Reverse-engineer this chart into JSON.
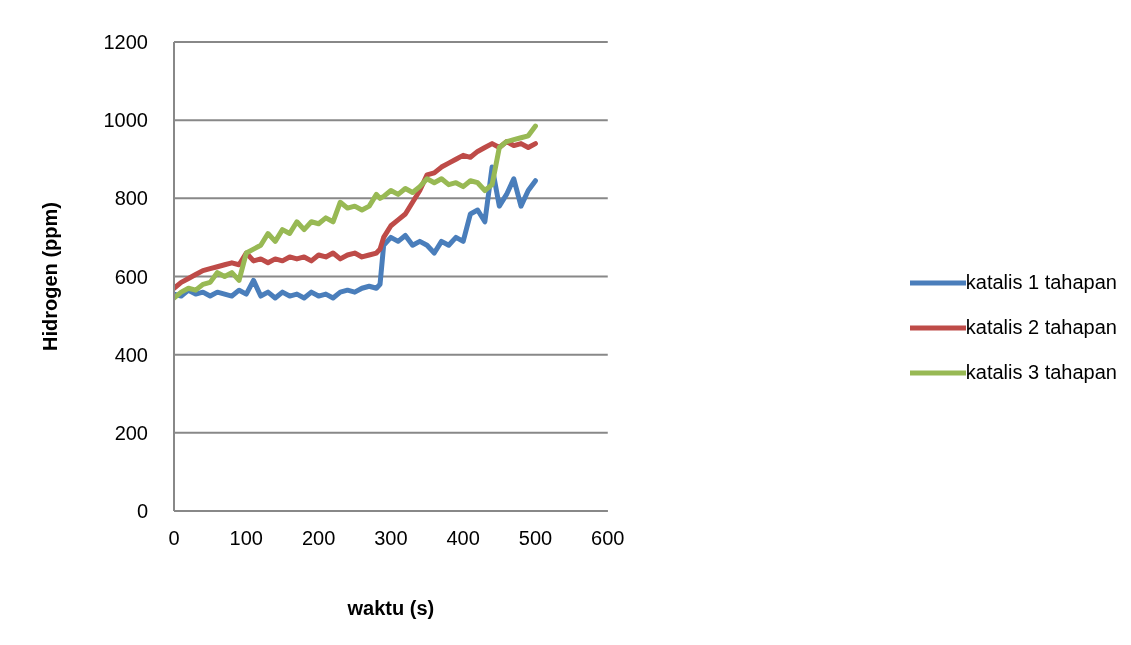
{
  "chart_data": {
    "type": "line",
    "xlabel": "waktu (s)",
    "ylabel": "Hidrogen (ppm)",
    "x": [
      0,
      10,
      20,
      30,
      40,
      50,
      60,
      70,
      80,
      90,
      100,
      110,
      120,
      130,
      140,
      150,
      160,
      170,
      180,
      190,
      200,
      210,
      220,
      230,
      240,
      250,
      260,
      270,
      280,
      285,
      290,
      300,
      310,
      320,
      330,
      340,
      350,
      360,
      370,
      380,
      390,
      400,
      410,
      420,
      430,
      440,
      450,
      460,
      470,
      480,
      490,
      500
    ],
    "series": [
      {
        "name": "katalis 1 tahapan",
        "color": "#4a7ebb",
        "values": [
          555,
          550,
          565,
          555,
          560,
          550,
          560,
          555,
          550,
          565,
          555,
          590,
          550,
          560,
          545,
          560,
          550,
          555,
          545,
          560,
          550,
          555,
          545,
          560,
          565,
          560,
          570,
          575,
          570,
          580,
          680,
          700,
          690,
          705,
          680,
          690,
          680,
          660,
          690,
          680,
          700,
          690,
          760,
          770,
          740,
          880,
          780,
          810,
          850,
          780,
          820,
          845
        ]
      },
      {
        "name": "katalis 2 tahapan",
        "color": "#be4b48",
        "values": [
          570,
          585,
          595,
          605,
          615,
          620,
          625,
          630,
          635,
          630,
          660,
          640,
          645,
          635,
          645,
          640,
          650,
          645,
          650,
          640,
          655,
          650,
          660,
          645,
          655,
          660,
          650,
          655,
          660,
          670,
          700,
          730,
          745,
          760,
          790,
          820,
          860,
          865,
          880,
          890,
          900,
          910,
          905,
          920,
          930,
          940,
          930,
          945,
          935,
          940,
          930,
          940
        ]
      },
      {
        "name": "katalis 3 tahapan",
        "color": "#98b954",
        "values": [
          545,
          560,
          570,
          565,
          580,
          585,
          610,
          600,
          610,
          590,
          660,
          670,
          680,
          710,
          690,
          720,
          710,
          740,
          720,
          740,
          735,
          750,
          740,
          790,
          775,
          780,
          770,
          780,
          810,
          800,
          805,
          820,
          810,
          825,
          815,
          830,
          850,
          840,
          850,
          835,
          840,
          830,
          845,
          840,
          820,
          835,
          930,
          945,
          950,
          955,
          960,
          985
        ]
      }
    ],
    "ylim": [
      0,
      1200
    ],
    "yticks": [
      0,
      200,
      400,
      600,
      800,
      1000,
      1200
    ],
    "xlim": [
      0,
      600
    ],
    "xticks": [
      0,
      100,
      200,
      300,
      400,
      500,
      600
    ],
    "grid": "y",
    "legend": "right",
    "marker": "none",
    "line_style": "solid"
  }
}
